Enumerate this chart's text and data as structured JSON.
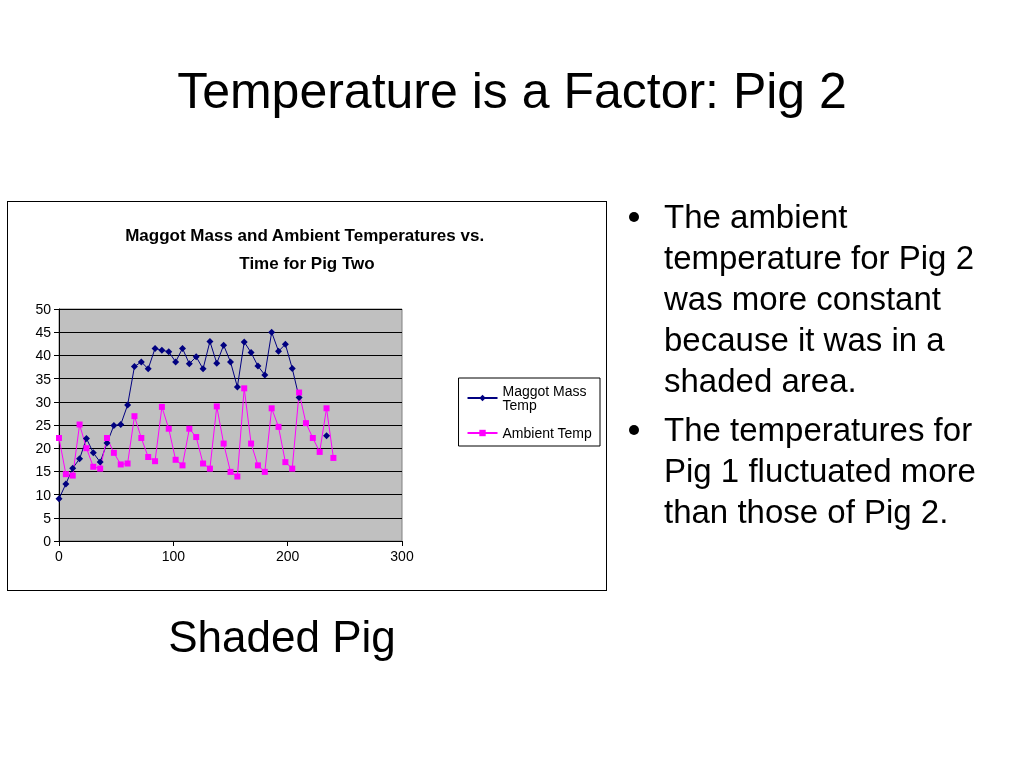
{
  "chart_data": {
    "type": "line",
    "title": "Temperature is a Factor: Pig 2",
    "subtitle": "Maggot Mass and Ambient Temperatures vs. Time for Pig Two",
    "annotations": [
      "Shaded Pig",
      "The ambient temperature for Pig 2 was more constant because it was in a shaded area.",
      "The temperatures for Pig 1 fluctuated more than those of Pig 2."
    ],
    "x": [
      0,
      6,
      12,
      18,
      24,
      30,
      36,
      42,
      48,
      54,
      60,
      66,
      72,
      78,
      84,
      90,
      96,
      102,
      108,
      114,
      120,
      126,
      132,
      138,
      144,
      150,
      156,
      162,
      168,
      174,
      180,
      186,
      192,
      198,
      204,
      210,
      216,
      222,
      228,
      234,
      240
    ],
    "series": [
      {
        "name": "Maggot Mass Temp",
        "color": "#000080",
        "marker": "diamond",
        "values": [
          9.1,
          12.3,
          15.7,
          17.7,
          22.1,
          19,
          17,
          21.1,
          24.9,
          25.1,
          29.3,
          37.6,
          38.6,
          37.1,
          41.5,
          41.1,
          40.8,
          38.6,
          41.5,
          38.2,
          39.7,
          37.1,
          43,
          38.3,
          42.2,
          38.6,
          33.2,
          42.9,
          40.6,
          37.7,
          35.8,
          45,
          40.9,
          42.4,
          37.2,
          30.9,
          null,
          null,
          null,
          22.7,
          null
        ]
      },
      {
        "name": "Ambient Temp",
        "color": "#ff00ff",
        "marker": "square",
        "values": [
          22.2,
          14.4,
          14.1,
          25.1,
          20,
          16,
          15.6,
          22.2,
          19,
          16.5,
          16.7,
          26.9,
          22.2,
          18.1,
          17.2,
          28.9,
          24.2,
          17.5,
          16.3,
          24.2,
          22.4,
          16.7,
          15.6,
          29,
          21,
          14.9,
          13.9,
          32.9,
          21,
          16.3,
          14.9,
          28.6,
          24.6,
          17,
          15.6,
          32,
          25.4,
          22.2,
          19.2,
          28.6,
          17.9
        ]
      }
    ],
    "xlim": [
      0,
      300
    ],
    "xticks": [
      0,
      100,
      200,
      300
    ],
    "ylim": [
      0,
      50
    ],
    "yticks": [
      0,
      5,
      10,
      15,
      20,
      25,
      30,
      35,
      40,
      45,
      50
    ],
    "grid": "y",
    "legend": "right",
    "line_style": "solid"
  }
}
